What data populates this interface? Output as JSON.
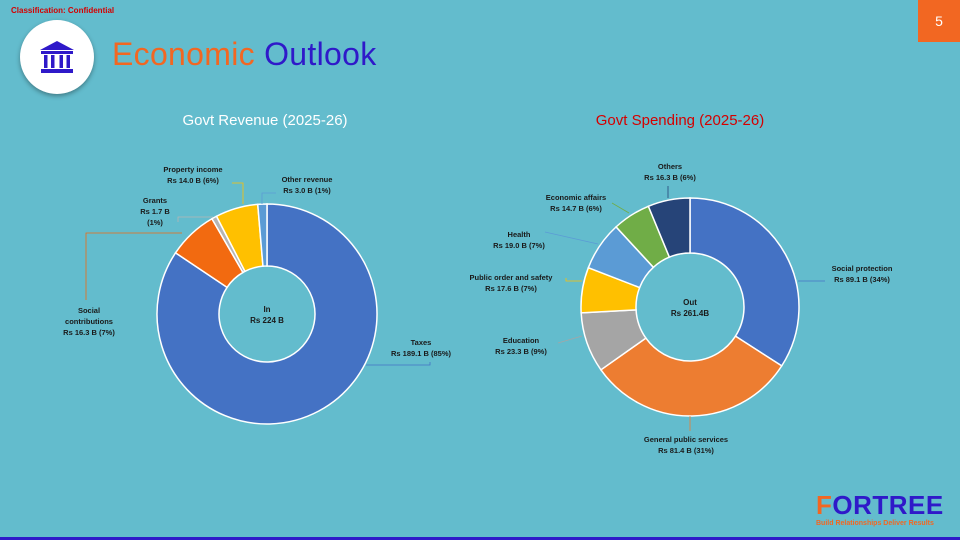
{
  "header": {
    "classification": "Classification: Confidential",
    "page_number": "5",
    "title_part1": "Economic",
    "title_part2": "Outlook",
    "logo_icon": "bank-building-icon"
  },
  "colors": {
    "accent_orange": "#f26722",
    "accent_blue": "#2f19c9",
    "background": "#63bccd",
    "confidential_red": "#d40000"
  },
  "brand": {
    "name_first_letter": "F",
    "name_rest": "ORTREE",
    "tagline": "Build Relationships Deliver Results"
  },
  "chart_data": [
    {
      "type": "pie",
      "variant": "donut",
      "title": "Govt Revenue (2025-26)",
      "center_label": [
        "In",
        "Rs 224 B"
      ],
      "unit": "Rs B",
      "slices": [
        {
          "name": "Taxes",
          "value": 189.1,
          "percent": 85,
          "color": "#4472c4",
          "label": [
            "Taxes",
            "Rs 189.1 B (85%)"
          ]
        },
        {
          "name": "Social contributions",
          "value": 16.3,
          "percent": 7,
          "color": "#f26a10",
          "label": [
            "Social",
            "contributions",
            "Rs 16.3 B (7%)"
          ]
        },
        {
          "name": "Grants",
          "value": 1.7,
          "percent": 1,
          "color": "#b5b5b5",
          "label": [
            "Grants",
            "Rs 1.7 B",
            "(1%)"
          ]
        },
        {
          "name": "Property income",
          "value": 14.0,
          "percent": 6,
          "color": "#ffc000",
          "label": [
            "Property income",
            "Rs 14.0 B (6%)"
          ]
        },
        {
          "name": "Other revenue",
          "value": 3.0,
          "percent": 1,
          "color": "#5b9bd5",
          "label": [
            "Other revenue",
            "Rs 3.0 B (1%)"
          ]
        }
      ]
    },
    {
      "type": "pie",
      "variant": "donut",
      "title": "Govt Spending (2025-26)",
      "center_label": [
        "Out",
        "Rs 261.4B"
      ],
      "unit": "Rs B",
      "slices": [
        {
          "name": "Social protection",
          "value": 89.1,
          "percent": 34,
          "color": "#4472c4",
          "label": [
            "Social protection",
            "Rs 89.1 B (34%)"
          ]
        },
        {
          "name": "General public services",
          "value": 81.4,
          "percent": 31,
          "color": "#ed7d31",
          "label": [
            "General public services",
            "Rs 81.4 B (31%)"
          ]
        },
        {
          "name": "Education",
          "value": 23.3,
          "percent": 9,
          "color": "#a5a5a5",
          "label": [
            "Education",
            "Rs 23.3 B (9%)"
          ]
        },
        {
          "name": "Public order and safety",
          "value": 17.6,
          "percent": 7,
          "color": "#ffc000",
          "label": [
            "Public order and safety",
            "Rs 17.6 B (7%)"
          ]
        },
        {
          "name": "Health",
          "value": 19.0,
          "percent": 7,
          "color": "#5b9bd5",
          "label": [
            "Health",
            "Rs 19.0 B (7%)"
          ]
        },
        {
          "name": "Economic affairs",
          "value": 14.7,
          "percent": 6,
          "color": "#70ad47",
          "label": [
            "Economic affairs",
            "Rs 14.7 B (6%)"
          ]
        },
        {
          "name": "Others",
          "value": 16.3,
          "percent": 6,
          "color": "#264478",
          "label": [
            "Others",
            "Rs 16.3 B (6%)"
          ]
        }
      ]
    }
  ]
}
